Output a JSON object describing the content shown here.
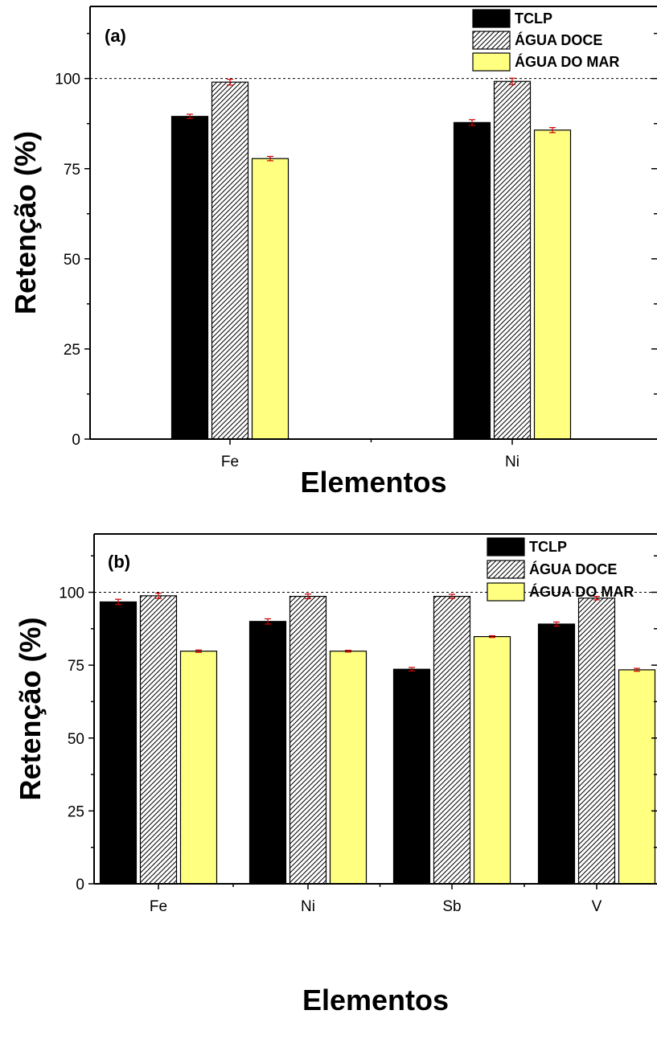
{
  "chart_data": [
    {
      "type": "bar",
      "panel_label": "(a)",
      "categories": [
        "Fe",
        "Ni"
      ],
      "series": [
        {
          "name": "TCLP",
          "color": "#000000",
          "pattern": "solid",
          "values": [
            89.5,
            87.8
          ],
          "errors": [
            0.6,
            0.8
          ]
        },
        {
          "name": "ÁGUA DOCE",
          "color": "#ffffff",
          "pattern": "diagonal-hatch",
          "values": [
            99.0,
            99.2
          ],
          "errors": [
            0.8,
            0.9
          ]
        },
        {
          "name": "ÁGUA DO MAR",
          "color": "#ffff80",
          "pattern": "solid",
          "values": [
            77.8,
            85.7
          ],
          "errors": [
            0.6,
            0.7
          ]
        }
      ],
      "xlabel": "Elementos",
      "ylabel": "Retenção (%)",
      "ylim": [
        0,
        120
      ],
      "yticks": [
        "0",
        "25",
        "50",
        "75",
        "100"
      ],
      "reference_line": 100,
      "legend_position": "top-right",
      "error_bar_color": "#cc0000"
    },
    {
      "type": "bar",
      "panel_label": "(b)",
      "categories": [
        "Fe",
        "Ni",
        "Sb",
        "V"
      ],
      "series": [
        {
          "name": "TCLP",
          "color": "#000000",
          "pattern": "solid",
          "values": [
            96.7,
            90.0,
            73.6,
            89.1
          ],
          "errors": [
            0.9,
            0.9,
            0.6,
            0.7
          ]
        },
        {
          "name": "ÁGUA DOCE",
          "color": "#ffffff",
          "pattern": "diagonal-hatch",
          "values": [
            98.8,
            98.6,
            98.6,
            98.0
          ],
          "errors": [
            0.9,
            0.8,
            0.7,
            0.6
          ]
        },
        {
          "name": "ÁGUA DO MAR",
          "color": "#ffff80",
          "pattern": "solid",
          "values": [
            79.8,
            79.8,
            84.8,
            73.4
          ],
          "errors": [
            0.4,
            0.3,
            0.3,
            0.5
          ]
        }
      ],
      "xlabel": "Elementos",
      "ylabel": "Retenção (%)",
      "ylim": [
        0,
        120
      ],
      "yticks": [
        "0",
        "25",
        "50",
        "75",
        "100"
      ],
      "reference_line": 100,
      "legend_position": "top-right",
      "error_bar_color": "#cc0000"
    }
  ]
}
